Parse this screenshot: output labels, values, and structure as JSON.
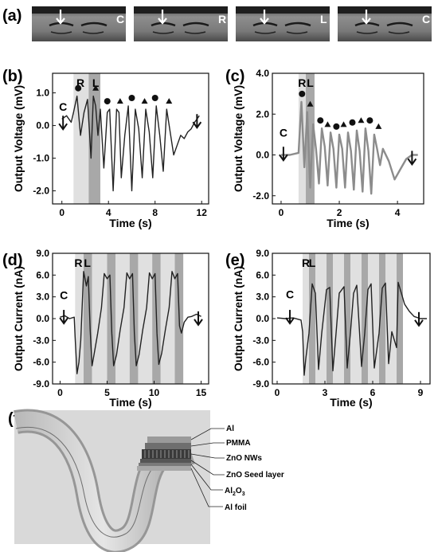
{
  "panel_labels": {
    "a": "(a)",
    "b": "(b)",
    "c": "(c)",
    "d": "(d)",
    "e": "(e)",
    "f": "(f)"
  },
  "photos": [
    {
      "label": "C"
    },
    {
      "label": "R"
    },
    {
      "label": "L"
    },
    {
      "label": "C"
    }
  ],
  "colors": {
    "band_light": "#e0e0e0",
    "band_dark": "#a8a8a8",
    "trace_dark": "#222222",
    "trace_grey": "#8c8c8c"
  },
  "chart_data": [
    {
      "id": "b",
      "type": "line",
      "xlabel": "Time (s)",
      "ylabel": "Output Voltage (mV)",
      "xlim": [
        -0.8,
        12.6
      ],
      "ylim": [
        -2.4,
        1.6
      ],
      "xticks": [
        0,
        4,
        8,
        12
      ],
      "xtick_labels": [
        "0",
        "4",
        "8",
        "12"
      ],
      "yticks": [
        1.0,
        0.0,
        -1.0,
        -2.0
      ],
      "ytick_labels": [
        "1.0",
        "0.0",
        "-1.0",
        "-2.0"
      ],
      "bands": [
        {
          "x0": 1.0,
          "x1": 2.3,
          "shade": "light"
        },
        {
          "x0": 2.3,
          "x1": 3.3,
          "shade": "dark"
        }
      ],
      "band_labels": [
        {
          "text": "R",
          "x": 1.6
        },
        {
          "text": "L",
          "x": 2.9
        }
      ],
      "annotations": [
        {
          "text": "C",
          "x": 0.1,
          "y": 0.45
        }
      ],
      "arrows": [
        {
          "x": 0.1,
          "y": 0.3
        },
        {
          "x": 11.6,
          "y": 0.35
        }
      ],
      "markers": [
        {
          "shape": "circle",
          "x": 1.4
        },
        {
          "shape": "triangle",
          "x": 2.9
        },
        {
          "shape": "circle",
          "x": 3.9
        },
        {
          "shape": "triangle",
          "x": 5.0
        },
        {
          "shape": "circle",
          "x": 6.0
        },
        {
          "shape": "triangle",
          "x": 7.1
        },
        {
          "shape": "circle",
          "x": 8.0
        },
        {
          "shape": "triangle",
          "x": 9.2
        }
      ],
      "series": [
        {
          "color": "dark",
          "x": [
            0,
            0.4,
            0.8,
            1.0,
            1.3,
            1.6,
            1.9,
            2.2,
            2.5,
            2.7,
            2.9,
            3.1,
            3.3,
            3.6,
            3.9,
            4.1,
            4.4,
            4.7,
            4.9,
            5.1,
            5.4,
            5.7,
            6.0,
            6.3,
            6.6,
            6.9,
            7.2,
            7.5,
            7.8,
            8.1,
            8.4,
            8.7,
            9.0,
            9.3,
            9.6,
            9.9,
            10.2,
            10.5,
            10.8,
            11.1,
            11.4,
            11.8
          ],
          "y": [
            0.2,
            0.3,
            0.1,
            0.4,
            0.9,
            -0.3,
            0.4,
            0.8,
            -1.0,
            0.9,
            0.6,
            -0.3,
            0.5,
            -1.3,
            0.4,
            0.5,
            -2.0,
            0.5,
            0.4,
            -1.6,
            -0.3,
            0.6,
            -2.0,
            0.5,
            -0.1,
            -1.6,
            0.5,
            -0.2,
            -1.6,
            0.6,
            -0.3,
            -1.4,
            0.5,
            -0.2,
            -0.9,
            -0.6,
            -0.3,
            -0.4,
            -0.2,
            -0.1,
            0.1,
            0.3
          ]
        }
      ]
    },
    {
      "id": "c",
      "type": "line",
      "xlabel": "Time (s)",
      "ylabel": "Output Voltage (mV)",
      "xlim": [
        -0.3,
        4.9
      ],
      "ylim": [
        -2.4,
        4.0
      ],
      "xticks": [
        0,
        2,
        4
      ],
      "xtick_labels": [
        "0",
        "2",
        "4"
      ],
      "yticks": [
        4.0,
        2.0,
        0.0,
        -2.0
      ],
      "ytick_labels": [
        "4.0",
        "2.0",
        "0.0",
        "-2.0"
      ],
      "bands": [
        {
          "x0": 0.6,
          "x1": 0.85,
          "shade": "light"
        },
        {
          "x0": 0.85,
          "x1": 1.15,
          "shade": "dark"
        }
      ],
      "band_labels": [
        {
          "text": "R",
          "x": 0.72
        },
        {
          "text": "L",
          "x": 1.0
        }
      ],
      "annotations": [
        {
          "text": "C",
          "x": 0.08,
          "y": 0.9
        }
      ],
      "arrows": [
        {
          "x": 0.08,
          "y": 0.4
        },
        {
          "x": 4.5,
          "y": 0.2
        }
      ],
      "markers": [
        {
          "shape": "circle",
          "x": 0.72
        },
        {
          "shape": "triangle",
          "x": 1.0
        },
        {
          "shape": "circle",
          "x": 1.35
        },
        {
          "shape": "triangle",
          "x": 1.6
        },
        {
          "shape": "circle",
          "x": 1.9
        },
        {
          "shape": "triangle",
          "x": 2.15
        },
        {
          "shape": "circle",
          "x": 2.45
        },
        {
          "shape": "triangle",
          "x": 2.75
        },
        {
          "shape": "circle",
          "x": 3.05
        },
        {
          "shape": "triangle",
          "x": 3.35
        }
      ],
      "series": [
        {
          "color": "grey",
          "x": [
            0,
            0.3,
            0.6,
            0.7,
            0.8,
            0.9,
            1.0,
            1.1,
            1.2,
            1.3,
            1.4,
            1.5,
            1.6,
            1.7,
            1.8,
            1.9,
            2.0,
            2.1,
            2.2,
            2.3,
            2.4,
            2.5,
            2.6,
            2.7,
            2.8,
            2.9,
            3.0,
            3.1,
            3.2,
            3.3,
            3.4,
            3.5,
            3.7,
            3.9,
            4.1,
            4.3,
            4.5,
            4.7
          ],
          "y": [
            0.0,
            0.0,
            0.1,
            2.6,
            -0.6,
            2.1,
            -1.6,
            1.5,
            0.3,
            -1.4,
            1.3,
            0.4,
            -1.5,
            1.1,
            0.3,
            -1.6,
            1.0,
            0.3,
            -1.6,
            1.1,
            0.2,
            -1.7,
            1.2,
            0.2,
            -1.8,
            1.3,
            0.2,
            -1.9,
            1.0,
            0.3,
            -0.5,
            0.3,
            -0.3,
            -1.2,
            -0.7,
            -0.2,
            0.0,
            0.0
          ]
        }
      ]
    },
    {
      "id": "d",
      "type": "line",
      "xlabel": "Time (s)",
      "ylabel": "Output Current (nA)",
      "xlim": [
        -0.8,
        15.8
      ],
      "ylim": [
        -9.0,
        9.0
      ],
      "xticks": [
        0,
        5,
        10,
        15
      ],
      "xtick_labels": [
        "0",
        "5",
        "10",
        "15"
      ],
      "yticks": [
        9.0,
        6.0,
        3.0,
        0.0,
        -3.0,
        -6.0,
        -9.0
      ],
      "ytick_labels": [
        "9.0",
        "6.0",
        "3.0",
        "0.0",
        "-3.0",
        "-6.0",
        "-9.0"
      ],
      "bands": [
        {
          "x0": 1.6,
          "x1": 2.5,
          "shade": "light"
        },
        {
          "x0": 2.5,
          "x1": 3.4,
          "shade": "dark"
        },
        {
          "x0": 3.4,
          "x1": 5.0,
          "shade": "light"
        },
        {
          "x0": 5.0,
          "x1": 5.9,
          "shade": "dark"
        },
        {
          "x0": 5.9,
          "x1": 7.4,
          "shade": "light"
        },
        {
          "x0": 7.4,
          "x1": 8.3,
          "shade": "dark"
        },
        {
          "x0": 8.3,
          "x1": 9.8,
          "shade": "light"
        },
        {
          "x0": 9.8,
          "x1": 10.7,
          "shade": "dark"
        },
        {
          "x0": 10.7,
          "x1": 12.2,
          "shade": "light"
        },
        {
          "x0": 12.2,
          "x1": 13.1,
          "shade": "dark"
        }
      ],
      "band_labels": [
        {
          "text": "R",
          "x": 1.95
        },
        {
          "text": "L",
          "x": 2.9
        }
      ],
      "annotations": [
        {
          "text": "C",
          "x": 0.4,
          "y": 2.7
        }
      ],
      "arrows": [
        {
          "x": 0.4,
          "y": 1.2
        },
        {
          "x": 14.7,
          "y": 1.0
        }
      ],
      "markers": [],
      "series": [
        {
          "color": "dark",
          "x": [
            0,
            0.5,
            1.0,
            1.5,
            1.6,
            1.8,
            2.0,
            2.2,
            2.5,
            2.8,
            3.0,
            3.2,
            3.4,
            3.6,
            4.0,
            4.4,
            4.7,
            5.0,
            5.3,
            5.5,
            5.7,
            6.0,
            6.4,
            6.8,
            7.1,
            7.4,
            7.7,
            7.9,
            8.1,
            8.4,
            8.8,
            9.2,
            9.5,
            9.8,
            10.1,
            10.3,
            10.5,
            10.8,
            11.2,
            11.6,
            11.9,
            12.2,
            12.5,
            12.7,
            12.9,
            13.2,
            13.6,
            14.0,
            14.5,
            15.0
          ],
          "y": [
            0.2,
            0.4,
            0.0,
            0.2,
            -2.5,
            -7.6,
            -6.0,
            -3.0,
            6.5,
            4.5,
            5.8,
            -1.5,
            -6.5,
            -5.0,
            -2.0,
            1.5,
            6.2,
            5.5,
            6.0,
            -2.0,
            -6.5,
            -5.0,
            -1.5,
            1.5,
            6.3,
            5.5,
            6.2,
            -2.0,
            -6.5,
            -5.0,
            -1.5,
            1.5,
            6.3,
            5.5,
            6.2,
            -2.0,
            -6.3,
            -4.8,
            -1.5,
            1.5,
            6.5,
            5.5,
            6.2,
            -1.0,
            -2.0,
            -0.5,
            0.2,
            0.3,
            0.6,
            0.3
          ]
        }
      ]
    },
    {
      "id": "e",
      "type": "line",
      "xlabel": "Time (s)",
      "ylabel": "Output Current (nA)",
      "xlim": [
        -0.3,
        9.6
      ],
      "ylim": [
        -9.0,
        9.0
      ],
      "xticks": [
        0,
        3,
        6,
        9
      ],
      "xtick_labels": [
        "0",
        "3",
        "6",
        "9"
      ],
      "yticks": [
        9.0,
        6.0,
        3.0,
        0.0,
        -3.0,
        -6.0,
        -9.0
      ],
      "ytick_labels": [
        "9.0",
        "6.0",
        "3.0",
        "0.0",
        "-3.0",
        "-6.0",
        "-9.0"
      ],
      "bands": [
        {
          "x0": 1.6,
          "x1": 2.0,
          "shade": "light"
        },
        {
          "x0": 2.0,
          "x1": 2.4,
          "shade": "dark"
        },
        {
          "x0": 2.4,
          "x1": 3.1,
          "shade": "light"
        },
        {
          "x0": 3.1,
          "x1": 3.5,
          "shade": "dark"
        },
        {
          "x0": 3.5,
          "x1": 4.2,
          "shade": "light"
        },
        {
          "x0": 4.2,
          "x1": 4.6,
          "shade": "dark"
        },
        {
          "x0": 4.6,
          "x1": 5.3,
          "shade": "light"
        },
        {
          "x0": 5.3,
          "x1": 5.7,
          "shade": "dark"
        },
        {
          "x0": 5.7,
          "x1": 6.4,
          "shade": "light"
        },
        {
          "x0": 6.4,
          "x1": 6.8,
          "shade": "dark"
        },
        {
          "x0": 6.8,
          "x1": 7.5,
          "shade": "light"
        },
        {
          "x0": 7.5,
          "x1": 7.9,
          "shade": "dark"
        }
      ],
      "band_labels": [
        {
          "text": "R",
          "x": 1.8
        },
        {
          "text": "L",
          "x": 2.2
        }
      ],
      "annotations": [
        {
          "text": "C",
          "x": 0.8,
          "y": 2.8
        }
      ],
      "arrows": [
        {
          "x": 0.8,
          "y": 1.2
        },
        {
          "x": 8.9,
          "y": 0.9
        }
      ],
      "markers": [],
      "series": [
        {
          "color": "dark",
          "x": [
            0,
            0.5,
            1.0,
            1.5,
            1.6,
            1.7,
            1.8,
            2.0,
            2.2,
            2.4,
            2.6,
            2.8,
            3.1,
            3.3,
            3.5,
            3.7,
            3.9,
            4.2,
            4.4,
            4.6,
            4.8,
            5.0,
            5.3,
            5.5,
            5.7,
            5.9,
            6.1,
            6.4,
            6.6,
            6.8,
            7.0,
            7.2,
            7.5,
            7.6,
            7.8,
            8.0,
            8.3,
            8.6,
            9.0,
            9.4
          ],
          "y": [
            0.1,
            0.0,
            0.1,
            -0.2,
            -1.8,
            -7.8,
            -5.5,
            -2.0,
            4.8,
            3.5,
            -7.0,
            -2.0,
            4.0,
            4.3,
            -7.2,
            -2.0,
            3.5,
            4.4,
            -6.8,
            -2.0,
            3.5,
            4.6,
            -6.6,
            -2.0,
            4.0,
            4.8,
            -6.8,
            -2.0,
            4.2,
            4.9,
            -6.2,
            -1.8,
            -4.0,
            5.0,
            3.5,
            2.0,
            1.0,
            0.3,
            0.0,
            0.0
          ]
        }
      ]
    }
  ],
  "diagram_f": {
    "layers": [
      "Al",
      "PMMA",
      "ZnO NWs",
      "ZnO Seed layer",
      "Al2O3",
      "Al foil"
    ]
  }
}
